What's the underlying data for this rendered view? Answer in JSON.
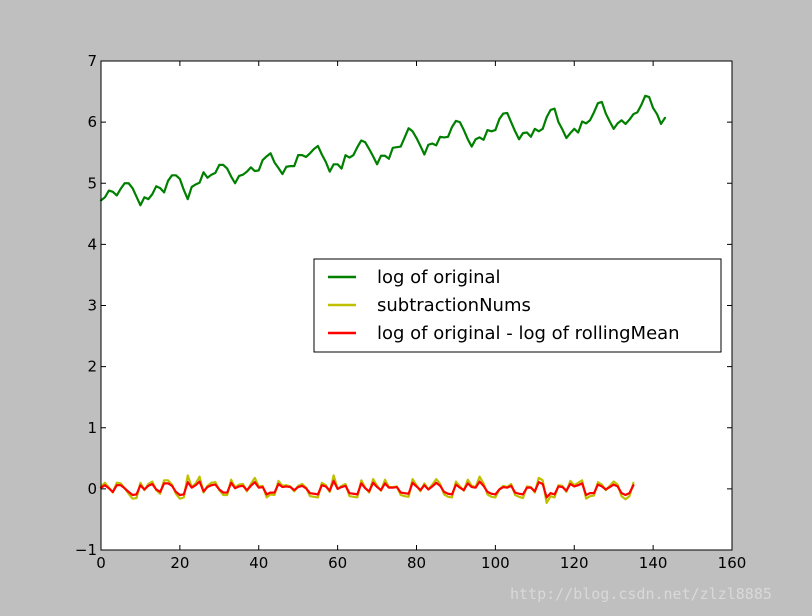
{
  "chart_data": {
    "type": "line",
    "title": "",
    "xlabel": "",
    "ylabel": "",
    "xlim": [
      0,
      160
    ],
    "ylim": [
      -1,
      7
    ],
    "xticks": [
      0,
      20,
      40,
      60,
      80,
      100,
      120,
      140,
      160
    ],
    "yticks": [
      -1,
      0,
      1,
      2,
      3,
      4,
      5,
      6,
      7
    ],
    "xtick_labels": [
      "0",
      "20",
      "40",
      "60",
      "80",
      "100",
      "120",
      "140",
      "160"
    ],
    "ytick_labels": [
      "−1",
      "0",
      "1",
      "2",
      "3",
      "4",
      "5",
      "6",
      "7"
    ],
    "grid": false,
    "legend_position": "center-right",
    "series": [
      {
        "name": "log of original",
        "color": "#008000",
        "values": [
          4.72,
          4.77,
          4.88,
          4.86,
          4.8,
          4.91,
          5.0,
          5.0,
          4.92,
          4.78,
          4.64,
          4.77,
          4.74,
          4.82,
          4.95,
          4.92,
          4.85,
          5.04,
          5.13,
          5.13,
          5.07,
          4.89,
          4.74,
          4.94,
          4.98,
          5.01,
          5.18,
          5.09,
          5.14,
          5.17,
          5.3,
          5.3,
          5.24,
          5.11,
          5.0,
          5.12,
          5.14,
          5.19,
          5.26,
          5.2,
          5.21,
          5.38,
          5.44,
          5.49,
          5.34,
          5.25,
          5.15,
          5.27,
          5.28,
          5.28,
          5.46,
          5.46,
          5.43,
          5.49,
          5.56,
          5.61,
          5.47,
          5.35,
          5.19,
          5.31,
          5.31,
          5.24,
          5.46,
          5.42,
          5.46,
          5.59,
          5.7,
          5.67,
          5.56,
          5.44,
          5.31,
          5.45,
          5.45,
          5.4,
          5.58,
          5.59,
          5.6,
          5.75,
          5.9,
          5.85,
          5.74,
          5.61,
          5.47,
          5.63,
          5.65,
          5.62,
          5.76,
          5.75,
          5.76,
          5.92,
          6.02,
          6.0,
          5.87,
          5.72,
          5.6,
          5.72,
          5.75,
          5.71,
          5.87,
          5.85,
          5.87,
          6.05,
          6.14,
          6.15,
          6.0,
          5.85,
          5.72,
          5.82,
          5.83,
          5.76,
          5.89,
          5.85,
          5.89,
          6.08,
          6.2,
          6.22,
          6.0,
          5.88,
          5.74,
          5.82,
          5.89,
          5.83,
          6.01,
          5.98,
          6.03,
          6.16,
          6.31,
          6.33,
          6.14,
          6.01,
          5.89,
          5.98,
          6.03,
          5.97,
          6.04,
          6.13,
          6.16,
          6.28,
          6.43,
          6.41,
          6.23,
          6.13,
          5.97,
          6.07
        ]
      },
      {
        "name": "subtractionNums",
        "color": "#bfbf00",
        "values": [
          0.04,
          0.1,
          0.02,
          -0.06,
          0.1,
          0.09,
          0.01,
          -0.08,
          -0.16,
          -0.15,
          0.1,
          -0.02,
          0.08,
          0.12,
          -0.02,
          -0.08,
          0.14,
          0.14,
          0.07,
          -0.08,
          -0.16,
          -0.14,
          0.22,
          0.03,
          0.09,
          0.2,
          -0.06,
          0.05,
          0.1,
          0.11,
          -0.02,
          -0.1,
          -0.1,
          0.15,
          0.02,
          0.07,
          0.08,
          -0.04,
          0.08,
          0.18,
          0.04,
          0.05,
          -0.14,
          -0.09,
          -0.1,
          0.13,
          0.05,
          0.06,
          0.04,
          -0.04,
          0.05,
          0.08,
          0.02,
          -0.12,
          -0.13,
          -0.14,
          0.1,
          0.06,
          -0.05,
          0.22,
          0.0,
          0.05,
          0.08,
          -0.12,
          -0.13,
          -0.14,
          0.14,
          0.02,
          -0.06,
          0.16,
          0.05,
          -0.03,
          0.15,
          0.03,
          0.03,
          0.04,
          -0.1,
          -0.12,
          -0.13,
          0.16,
          0.06,
          -0.04,
          0.09,
          -0.01,
          0.07,
          0.16,
          0.08,
          -0.09,
          -0.13,
          -0.14,
          0.12,
          0.04,
          -0.03,
          0.15,
          0.05,
          0.03,
          0.2,
          0.09,
          -0.09,
          -0.13,
          -0.14,
          -0.01,
          0.05,
          0.03,
          0.08,
          -0.1,
          -0.13,
          -0.15,
          0.04,
          0.03,
          -0.06,
          0.18,
          0.14,
          -0.23,
          -0.12,
          -0.14,
          0.06,
          0.05,
          -0.05,
          0.13,
          0.06,
          0.1,
          0.14,
          -0.16,
          -0.12,
          -0.11,
          0.11,
          0.07,
          -0.02,
          0.05,
          0.12,
          0.07,
          -0.12,
          -0.17,
          -0.12,
          0.1
        ]
      },
      {
        "name": "log of original - log of rollingMean",
        "color": "#ff0000",
        "values": [
          0.02,
          0.06,
          0.01,
          -0.05,
          0.06,
          0.06,
          0.01,
          -0.05,
          -0.1,
          -0.09,
          0.06,
          -0.01,
          0.05,
          0.08,
          -0.01,
          -0.05,
          0.09,
          0.09,
          0.05,
          -0.05,
          -0.1,
          -0.09,
          0.11,
          0.02,
          0.06,
          0.12,
          -0.04,
          0.03,
          0.06,
          0.07,
          -0.01,
          -0.06,
          -0.06,
          0.1,
          0.01,
          0.04,
          0.05,
          -0.02,
          0.05,
          0.11,
          0.02,
          0.03,
          -0.09,
          -0.06,
          -0.06,
          0.08,
          0.03,
          0.04,
          0.03,
          -0.02,
          0.03,
          0.05,
          0.01,
          -0.07,
          -0.08,
          -0.09,
          0.06,
          0.04,
          -0.03,
          0.13,
          0.0,
          0.03,
          0.05,
          -0.07,
          -0.08,
          -0.09,
          0.09,
          0.01,
          -0.04,
          0.1,
          0.03,
          -0.02,
          0.09,
          0.02,
          0.02,
          0.03,
          -0.06,
          -0.07,
          -0.08,
          0.1,
          0.04,
          -0.02,
          0.06,
          -0.01,
          0.04,
          0.1,
          0.05,
          -0.05,
          -0.08,
          -0.09,
          0.07,
          0.02,
          -0.02,
          0.09,
          0.03,
          0.02,
          0.12,
          0.05,
          -0.05,
          -0.08,
          -0.09,
          -0.01,
          0.03,
          0.02,
          0.05,
          -0.06,
          -0.08,
          -0.09,
          0.02,
          0.02,
          -0.04,
          0.11,
          0.08,
          -0.14,
          -0.07,
          -0.09,
          0.04,
          0.03,
          -0.03,
          0.08,
          0.04,
          0.06,
          0.09,
          -0.1,
          -0.07,
          -0.07,
          0.07,
          0.04,
          -0.01,
          0.03,
          0.07,
          0.04,
          -0.07,
          -0.1,
          -0.07,
          0.06
        ]
      }
    ]
  },
  "watermark": "http://blog.csdn.net/zlzl8885"
}
